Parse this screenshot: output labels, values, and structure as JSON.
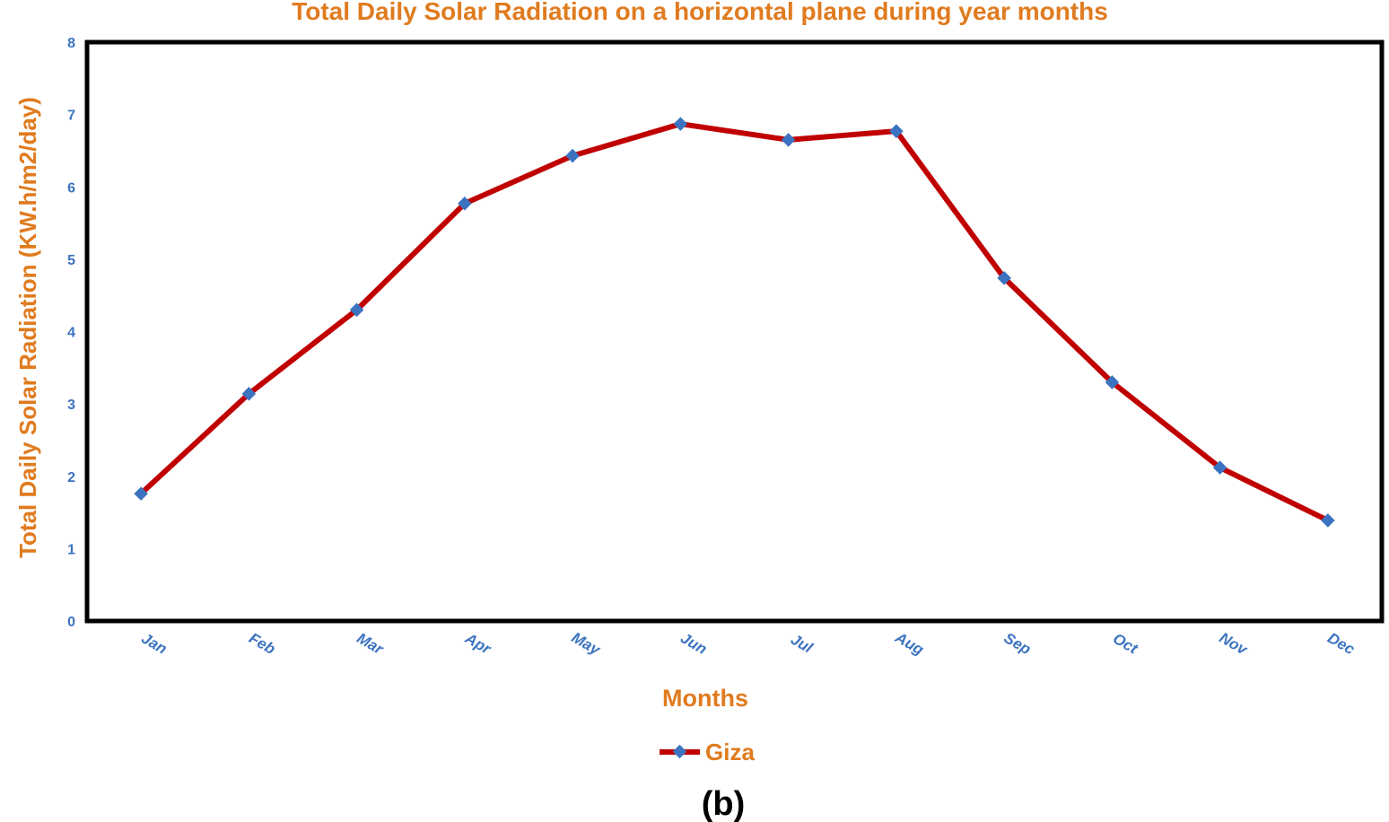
{
  "chart_data": {
    "type": "line",
    "title": "Total Daily Solar Radiation on a horizontal plane during year months",
    "xlabel": "Months",
    "ylabel": "Total Daily Solar Radiation (KW.h/m2/day)",
    "categories": [
      "Jan",
      "Feb",
      "Mar",
      "Apr",
      "May",
      "Jun",
      "Jul",
      "Aug",
      "Sep",
      "Oct",
      "Nov",
      "Dec"
    ],
    "series": [
      {
        "name": "Giza",
        "color": "#C00000",
        "marker_color": "#3B73C0",
        "values": [
          1.76,
          3.14,
          4.3,
          5.77,
          6.43,
          6.87,
          6.65,
          6.77,
          4.74,
          3.3,
          2.12,
          1.39
        ]
      }
    ],
    "ylim": [
      0,
      8
    ],
    "yticks": [
      "0",
      "1",
      "2",
      "3",
      "4",
      "5",
      "6",
      "7",
      "8"
    ],
    "grid": false,
    "legend": "bottom-center",
    "caption": "(b)"
  }
}
